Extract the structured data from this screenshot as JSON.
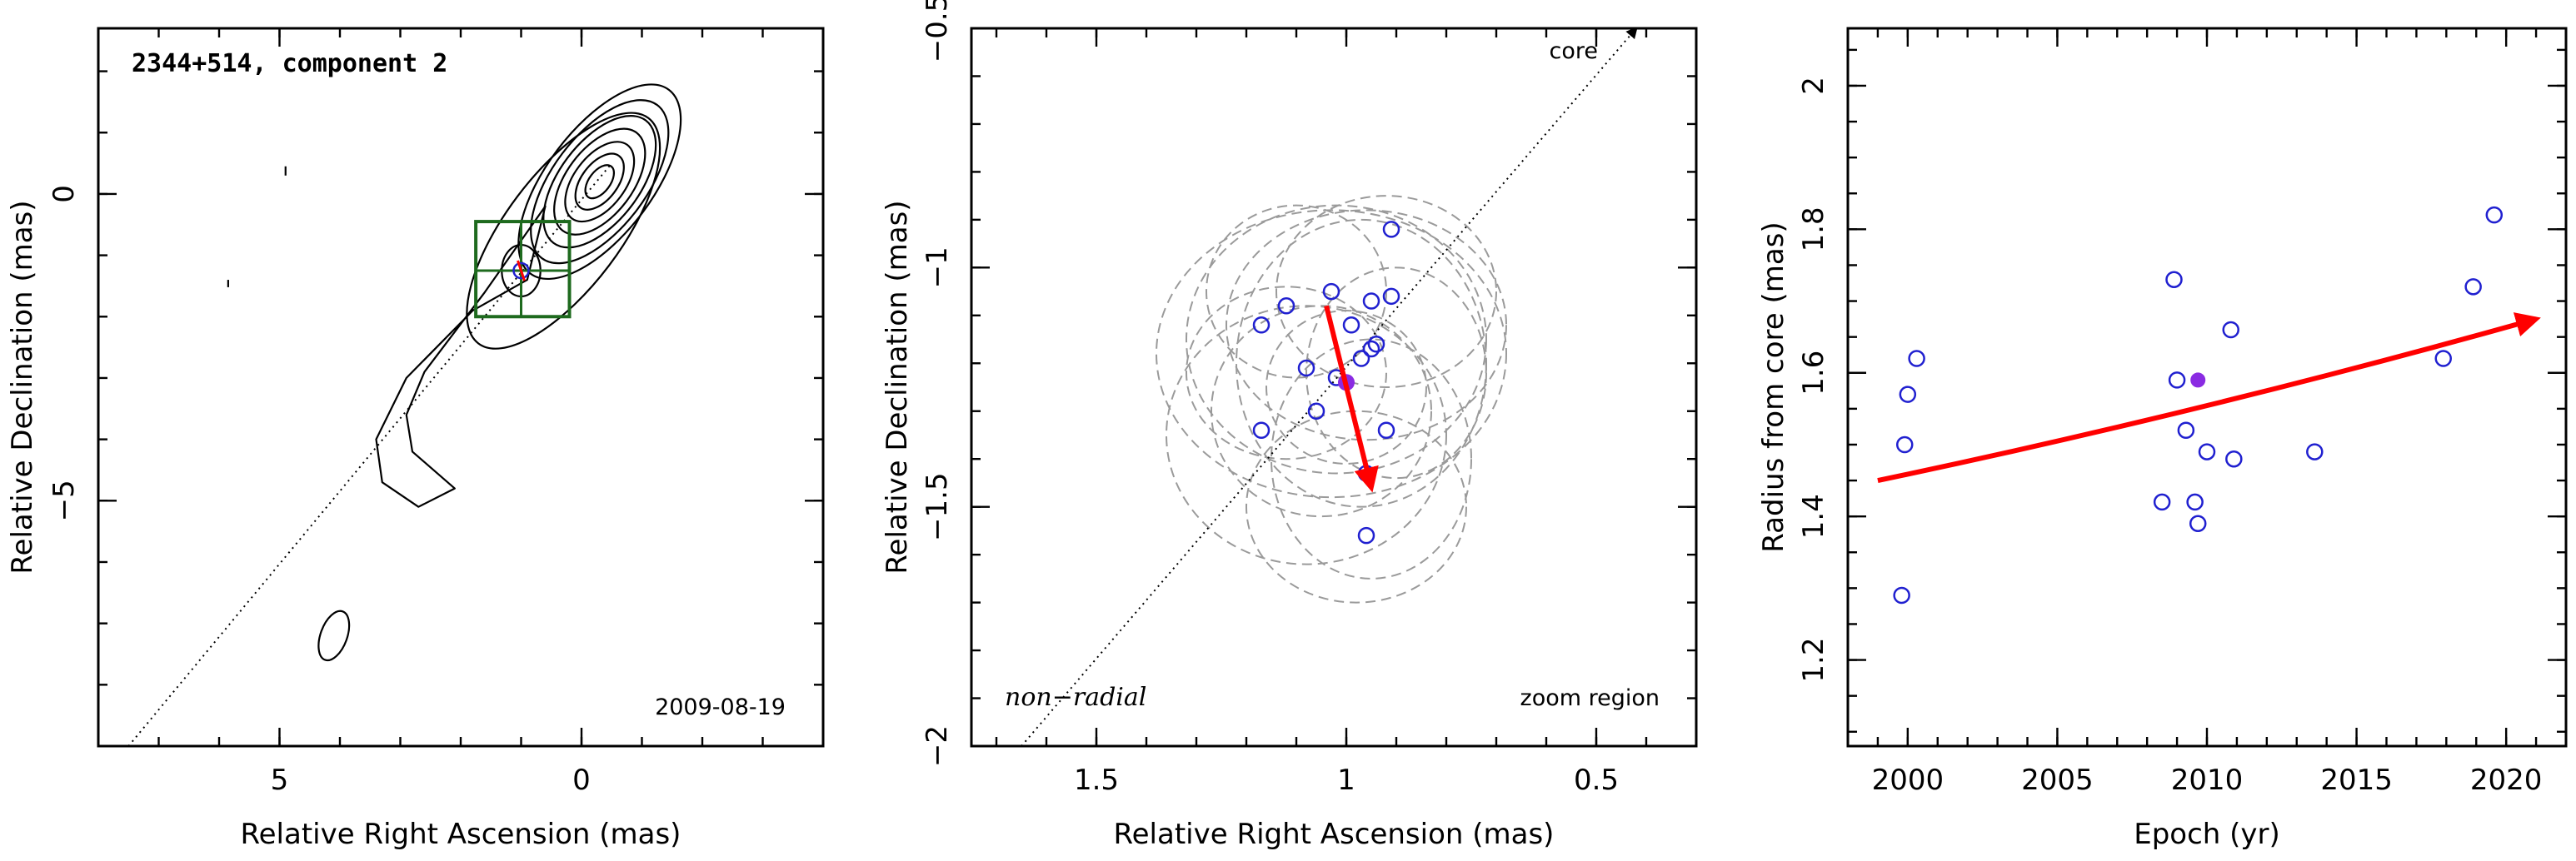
{
  "chart_data": [
    {
      "type": "contour",
      "title": "2344+514, component 2",
      "date_label": "2009-08-19",
      "xlabel": "Relative Right Ascension (mas)",
      "ylabel": "Relative Declination (mas)",
      "xlim": [
        8,
        -4
      ],
      "ylim": [
        -9,
        2.7
      ],
      "x_ticks": [
        5,
        0
      ],
      "y_ticks": [
        0,
        -5
      ],
      "jet_line": {
        "from": [
          7.5,
          -9
        ],
        "to": [
          -0.5,
          0.5
        ]
      },
      "component_position": [
        1.0,
        -1.25
      ],
      "zoom_box": {
        "x": [
          1.75,
          0.2
        ],
        "y": [
          -2.0,
          -0.45
        ]
      },
      "contour_color": "#000000",
      "box_color": "#1e6a1e"
    },
    {
      "type": "scatter",
      "xlabel": "Relative Right Ascension (mas)",
      "ylabel": "Relative Declination (mas)",
      "xlim": [
        1.75,
        0.3
      ],
      "ylim": [
        -2,
        -0.5
      ],
      "x_ticks": [
        1.5,
        1,
        0.5
      ],
      "y_ticks": [
        -2,
        -1.5,
        -1,
        -0.5
      ],
      "y_tick_labels": [
        "−2",
        "−1.5",
        "−1",
        "−0.5"
      ],
      "core_label": "core",
      "bottom_left_label": "non−radial",
      "bottom_right_label": "zoom region",
      "points": [
        {
          "x": 0.91,
          "y": -0.92
        },
        {
          "x": 1.03,
          "y": -1.05
        },
        {
          "x": 0.91,
          "y": -1.06
        },
        {
          "x": 0.95,
          "y": -1.07
        },
        {
          "x": 1.12,
          "y": -1.08
        },
        {
          "x": 1.17,
          "y": -1.12
        },
        {
          "x": 0.99,
          "y": -1.12
        },
        {
          "x": 0.94,
          "y": -1.16
        },
        {
          "x": 0.95,
          "y": -1.17
        },
        {
          "x": 0.97,
          "y": -1.19
        },
        {
          "x": 1.08,
          "y": -1.21
        },
        {
          "x": 1.02,
          "y": -1.23
        },
        {
          "x": 1.06,
          "y": -1.3
        },
        {
          "x": 0.92,
          "y": -1.34
        },
        {
          "x": 1.17,
          "y": -1.34
        },
        {
          "x": 0.96,
          "y": -1.43
        },
        {
          "x": 0.96,
          "y": -1.56
        }
      ],
      "highlight": {
        "x": 1.0,
        "y": -1.24
      },
      "motion_arrow": {
        "from": [
          1.04,
          -1.08
        ],
        "to": [
          0.95,
          -1.46
        ]
      },
      "ellipse_color": "#9a9a9a",
      "point_color": "#2020d0",
      "highlight_color": "#8a2be2",
      "arrow_color": "#ff0000"
    },
    {
      "type": "scatter",
      "xlabel": "Epoch (yr)",
      "ylabel": "Radius from core (mas)",
      "xlim": [
        1998,
        2022
      ],
      "ylim": [
        1.08,
        2.08
      ],
      "x_ticks": [
        2000,
        2005,
        2010,
        2015,
        2020
      ],
      "y_ticks": [
        1.2,
        1.4,
        1.6,
        1.8,
        2
      ],
      "points": [
        {
          "x": 1999.8,
          "y": 1.29
        },
        {
          "x": 1999.9,
          "y": 1.5
        },
        {
          "x": 2000.0,
          "y": 1.57
        },
        {
          "x": 2000.3,
          "y": 1.62
        },
        {
          "x": 2008.5,
          "y": 1.42
        },
        {
          "x": 2008.9,
          "y": 1.73
        },
        {
          "x": 2009.0,
          "y": 1.59
        },
        {
          "x": 2009.3,
          "y": 1.52
        },
        {
          "x": 2009.6,
          "y": 1.42
        },
        {
          "x": 2009.7,
          "y": 1.39
        },
        {
          "x": 2010.0,
          "y": 1.49
        },
        {
          "x": 2010.8,
          "y": 1.66
        },
        {
          "x": 2010.9,
          "y": 1.48
        },
        {
          "x": 2013.6,
          "y": 1.49
        },
        {
          "x": 2017.9,
          "y": 1.62
        },
        {
          "x": 2018.9,
          "y": 1.72
        },
        {
          "x": 2019.6,
          "y": 1.82
        }
      ],
      "highlight": {
        "x": 2009.7,
        "y": 1.59
      },
      "trend_arrow": {
        "from": [
          1999,
          1.45
        ],
        "to": [
          2021,
          1.675
        ]
      },
      "point_color": "#2020d0",
      "highlight_color": "#8a2be2",
      "arrow_color": "#ff0000"
    }
  ]
}
